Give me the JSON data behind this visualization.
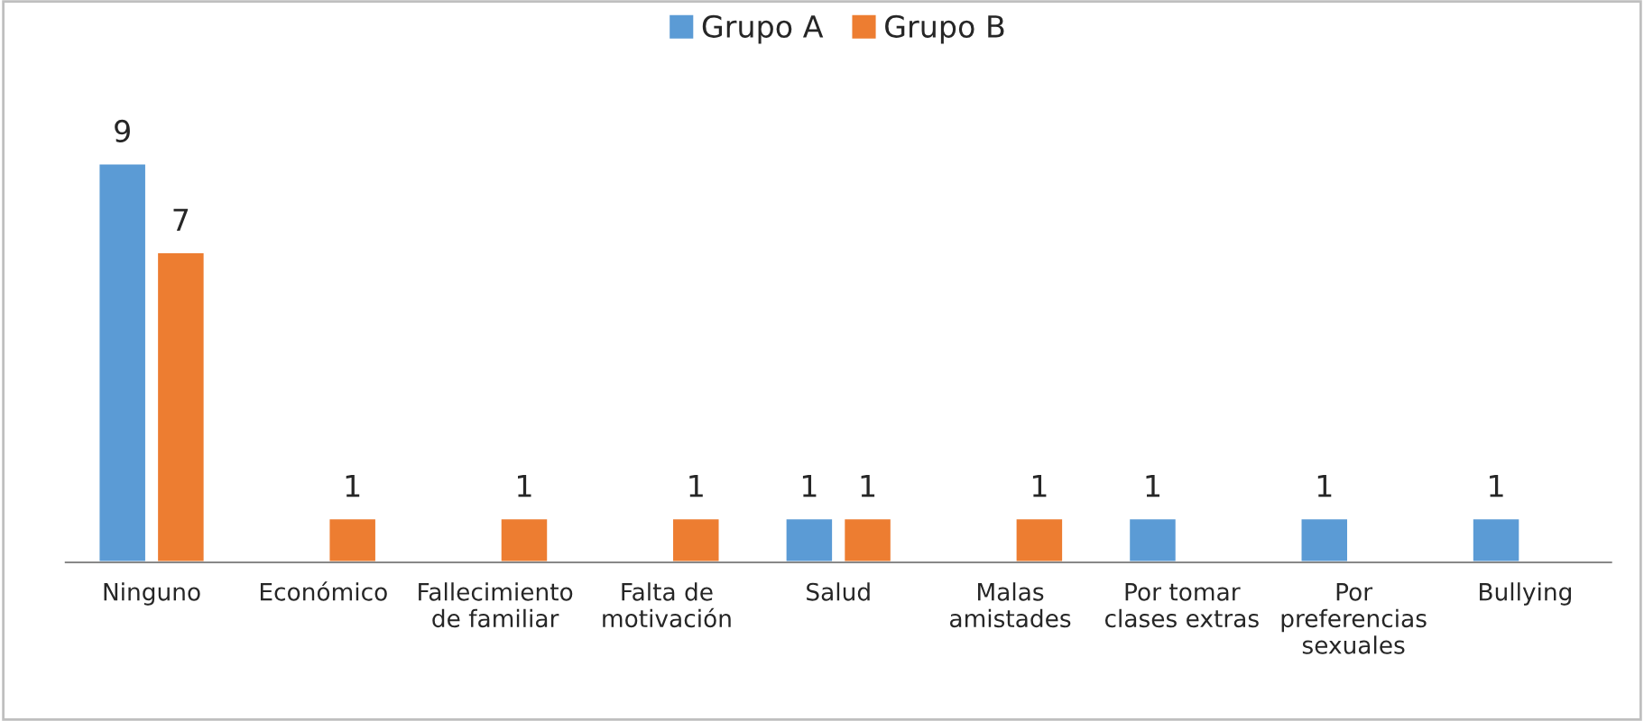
{
  "chart_data": {
    "type": "bar",
    "categories": [
      "Ninguno",
      "Económico",
      "Fallecimiento\nde familiar",
      "Falta de\nmotivación",
      "Salud",
      "Malas\namistades",
      "Por tomar\nclases extras",
      "Por\npreferencias\nsexuales",
      "Bullying"
    ],
    "series": [
      {
        "name": "Grupo A",
        "color": "#5b9bd5",
        "values": [
          9,
          null,
          null,
          null,
          1,
          null,
          1,
          1,
          1
        ]
      },
      {
        "name": "Grupo B",
        "color": "#ed7d31",
        "values": [
          7,
          1,
          1,
          1,
          1,
          1,
          null,
          null,
          null
        ]
      }
    ],
    "data_labels": true,
    "legend": "top",
    "grid": false
  }
}
